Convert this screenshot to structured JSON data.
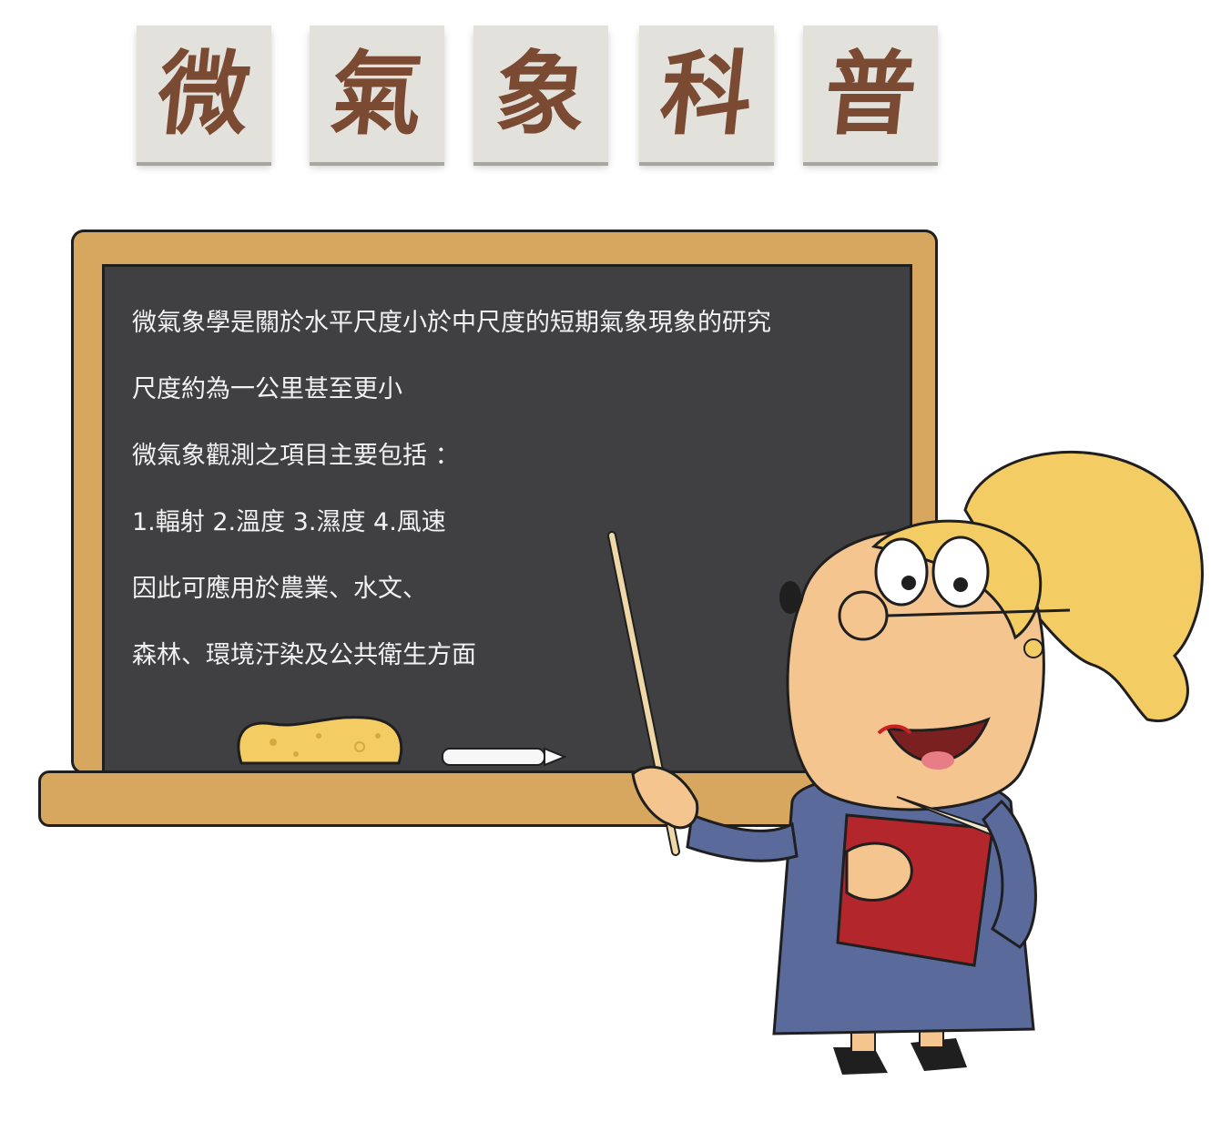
{
  "title": [
    "微",
    "氣",
    "象",
    "科",
    "普"
  ],
  "board": {
    "lines": [
      "微氣象學是關於水平尺度小於中尺度的短期氣象現象的研究",
      "尺度約為一公里甚至更小",
      "微氣象觀測之項目主要包括 ：",
      "1.輻射 2.溫度 3.濕度 4.風速",
      "因此可應用於農業、水文、",
      "森林、環境汙染及公共衛生方面"
    ]
  },
  "colors": {
    "title_tile": "#e3e1dc",
    "title_text": "#7a4a32",
    "chalkboard": "#404042",
    "frame": "#d7a760",
    "hair": "#f3cc63",
    "dress": "#5a6a9a",
    "book": "#b3262b"
  }
}
